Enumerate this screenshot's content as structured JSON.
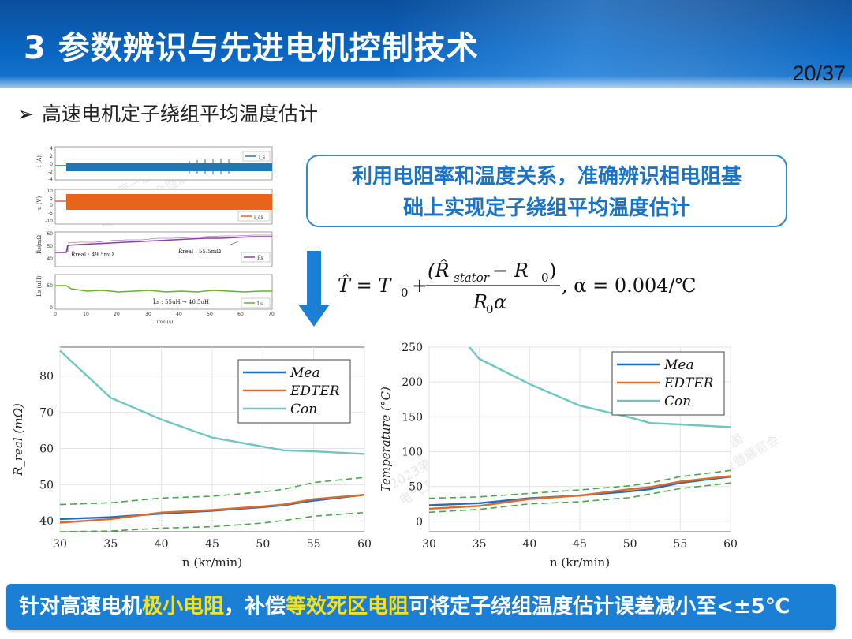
{
  "header": {
    "title": "3 参数辨识与先进电机控制技术",
    "page_number": "20/37"
  },
  "subtitle": {
    "bullet": "➢",
    "text": "高速电机定子绕组平均温度估计"
  },
  "callout": {
    "line1": "利用电阻率和温度关系，准确辨识相电阻基",
    "line2": "础上实现定子绕组平均温度估计"
  },
  "formula": {
    "lhs": "T̂ = T",
    "sub0": "0",
    "numerator": "(R̂",
    "num_sub": "stator",
    "num_rest": " − R",
    "num_sub0": "0",
    "num_close": ")",
    "denominator": "R",
    "den_sub": "0",
    "den_rest": "α",
    "alpha": ", α = 0.004/℃"
  },
  "small_panels": {
    "panel1": {
      "ylabel": "i (A)",
      "legend": "i_s",
      "yticks": [
        "4",
        "2",
        "0",
        "-2",
        "-4"
      ]
    },
    "panel2": {
      "ylabel": "u (V)",
      "legend": "i_as",
      "yticks": [
        "10",
        "5",
        "0",
        "-5",
        "-10"
      ]
    },
    "panel3": {
      "ylabel": "R̂s(mΩ)",
      "legend": "R̂s",
      "yticks": [
        "60",
        "50",
        "40"
      ],
      "ann1": "R̂real : 49.5mΩ",
      "ann2": "R̂real : 55.5mΩ"
    },
    "panel4": {
      "ylabel": "Ls (uH)",
      "legend": "Ls",
      "yticks": [
        "50",
        "0"
      ],
      "ann": "L̂s : 55uH → 46.5uH"
    },
    "xticks": [
      "0",
      "10",
      "20",
      "30",
      "40",
      "50",
      "60",
      "70"
    ],
    "xlabel": "Time (s)"
  },
  "chart_data": [
    {
      "type": "line",
      "title": "",
      "xlabel": "n (kr/min)",
      "ylabel": "R_real (mΩ)",
      "xlim": [
        30,
        60
      ],
      "ylim": [
        37,
        88
      ],
      "xticks": [
        "30",
        "35",
        "40",
        "45",
        "50",
        "55",
        "60"
      ],
      "yticks": [
        "40",
        "50",
        "60",
        "70",
        "80"
      ],
      "grid": true,
      "legend": "top-right",
      "series": [
        {
          "name": "Mea",
          "color": "#1f6fbf",
          "style": "solid",
          "x": [
            30,
            35,
            40,
            45,
            50,
            52,
            55,
            60
          ],
          "values": [
            40.5,
            41,
            42,
            42.8,
            43.8,
            44.3,
            45.6,
            47.2
          ]
        },
        {
          "name": "EDTER",
          "color": "#e06a28",
          "style": "solid",
          "x": [
            30,
            35,
            40,
            45,
            50,
            52,
            55,
            60
          ],
          "values": [
            39.5,
            40.5,
            42.3,
            43.0,
            44.0,
            44.5,
            46,
            47.2
          ]
        },
        {
          "name": "Con",
          "color": "#6cc7c2",
          "style": "solid",
          "x": [
            30,
            35,
            40,
            45,
            50,
            52,
            55,
            60
          ],
          "values": [
            87,
            74,
            68,
            63,
            60.5,
            59.5,
            59.2,
            58.5
          ]
        },
        {
          "name": "",
          "color": "#4aa64a",
          "style": "dashed",
          "x": [
            30,
            35,
            40,
            45,
            50,
            52,
            55,
            60
          ],
          "values": [
            44.5,
            45,
            46.3,
            46.8,
            48,
            48.7,
            50.6,
            52
          ]
        },
        {
          "name": "",
          "color": "#4aa64a",
          "style": "dashed",
          "x": [
            30,
            35,
            40,
            45,
            50,
            52,
            55,
            60
          ],
          "values": [
            37,
            37.2,
            38,
            38.4,
            39.4,
            40.1,
            41.3,
            42.3
          ]
        }
      ]
    },
    {
      "type": "line",
      "title": "",
      "xlabel": "n (kr/min)",
      "ylabel": "Temperature (°C)",
      "xlim": [
        30,
        60
      ],
      "ylim": [
        -15,
        250
      ],
      "xticks": [
        "30",
        "35",
        "40",
        "45",
        "50",
        "55",
        "60"
      ],
      "yticks": [
        "0",
        "50",
        "100",
        "150",
        "200",
        "250"
      ],
      "grid": true,
      "legend": "top-right",
      "series": [
        {
          "name": "Mea",
          "color": "#1f6fbf",
          "style": "solid",
          "x": [
            30,
            35,
            40,
            45,
            50,
            52,
            55,
            60
          ],
          "values": [
            23,
            26,
            33,
            37,
            43,
            46,
            55,
            64
          ]
        },
        {
          "name": "EDTER",
          "color": "#e06a28",
          "style": "solid",
          "x": [
            30,
            35,
            40,
            45,
            50,
            52,
            55,
            60
          ],
          "values": [
            18,
            22,
            32,
            37,
            46,
            49,
            57,
            65
          ]
        },
        {
          "name": "Con",
          "color": "#6cc7c2",
          "style": "solid",
          "x": [
            34,
            35,
            40,
            45,
            50,
            52,
            55,
            60
          ],
          "values": [
            250,
            233,
            197,
            166,
            149,
            141,
            139,
            135
          ]
        },
        {
          "name": "",
          "color": "#4aa64a",
          "style": "dashed",
          "x": [
            30,
            35,
            40,
            45,
            50,
            52,
            55,
            60
          ],
          "values": [
            33,
            35,
            40,
            45,
            51,
            55,
            64,
            73
          ]
        },
        {
          "name": "",
          "color": "#4aa64a",
          "style": "dashed",
          "x": [
            30,
            35,
            40,
            45,
            50,
            52,
            55,
            60
          ],
          "values": [
            13,
            17,
            25,
            28,
            34,
            39,
            47,
            55
          ]
        }
      ]
    }
  ],
  "banner": {
    "part1": "针对高速电机",
    "highlight1": "极小电阻",
    "part2": "，补偿",
    "highlight2": "等效死区电阻",
    "part3": "可将定子绕组温度估计误差减小至<±5℃"
  },
  "watermark": [
    "2023第一届中国",
    "电气工程大会暨展览会"
  ]
}
